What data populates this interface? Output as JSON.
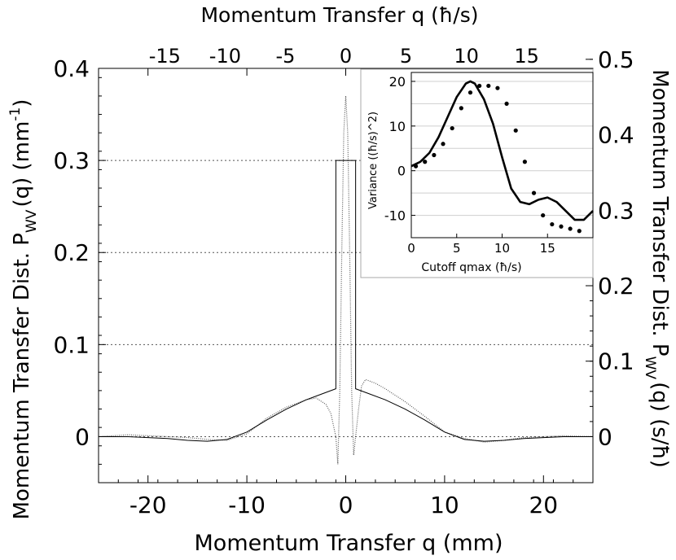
{
  "chart_data": [
    {
      "type": "scatter",
      "title": "",
      "xlabel": "Momentum Transfer q (mm)",
      "x2label": "Momentum Transfer q (ħ/s)",
      "ylabel": "Momentum Transfer Dist. P",
      "ylabel_sub": "WV",
      "ylabel_tail": "(q) (mm",
      "ylabel_sup": "-1",
      "ylabel_end": ")",
      "y2label": "Momentum Transfer Dist. P",
      "y2label_sub": "WV",
      "y2label_tail": "(q) (s/ħ)",
      "xlim": [
        -25,
        25
      ],
      "ylim": [
        -0.05,
        0.4
      ],
      "x_ticks": [
        -20,
        -10,
        0,
        10,
        20
      ],
      "y_ticks": [
        0,
        0.1,
        0.2,
        0.3,
        0.4
      ],
      "y_tick_labels": [
        "0",
        "0.1",
        "0.2",
        "0.3",
        "0.4"
      ],
      "x2_ticks": [
        -15,
        -10,
        -5,
        0,
        5,
        10,
        15
      ],
      "x2_scale_mm_per_unit": 1.22,
      "y2_ticks": [
        0,
        0.1,
        0.2,
        0.3,
        0.4,
        0.5
      ],
      "y2_tick_labels": [
        "0",
        "0.1",
        "0.2",
        "0.3",
        "0.4",
        "0.5"
      ],
      "y2_per_y": 1.22,
      "grid_y_dotted": [
        0,
        0.1,
        0.2,
        0.3
      ],
      "series": [
        {
          "style": "dots",
          "x": [
            -25,
            -22,
            -20,
            -18,
            -16,
            -14,
            -12,
            -10,
            -8,
            -6,
            -4,
            -3,
            -2,
            -1.5,
            -1.0,
            -0.8,
            -0.6,
            -0.4,
            -0.2,
            0,
            0.2,
            0.4,
            0.6,
            0.8,
            1.0,
            1.3,
            1.6,
            2,
            3,
            4,
            6,
            8,
            10,
            12,
            14,
            16,
            18,
            20,
            22,
            25
          ],
          "y": [
            0,
            0.002,
            0.001,
            0,
            -0.001,
            -0.003,
            -0.004,
            0.003,
            0.02,
            0.032,
            0.04,
            0.042,
            0.035,
            0.025,
            0.0,
            -0.03,
            0.05,
            0.2,
            0.33,
            0.37,
            0.33,
            0.2,
            0.05,
            -0.02,
            0.0,
            0.03,
            0.055,
            0.062,
            0.058,
            0.052,
            0.038,
            0.022,
            0.005,
            -0.002,
            -0.006,
            -0.004,
            -0.001,
            0,
            0.001,
            0
          ]
        },
        {
          "style": "line",
          "x": [
            -25,
            -22,
            -20,
            -18,
            -16,
            -14,
            -12,
            -10,
            -8,
            -6,
            -4,
            -2,
            -1,
            -1,
            1,
            1,
            2,
            4,
            6,
            8,
            10,
            12,
            14,
            16,
            18,
            20,
            22,
            25
          ],
          "y": [
            0,
            0,
            -0.001,
            -0.002,
            -0.004,
            -0.005,
            -0.003,
            0.005,
            0.018,
            0.03,
            0.04,
            0.048,
            0.052,
            0.3,
            0.3,
            0.052,
            0.048,
            0.04,
            0.03,
            0.018,
            0.005,
            -0.003,
            -0.005,
            -0.004,
            -0.002,
            -0.001,
            0,
            0
          ]
        }
      ]
    },
    {
      "type": "line",
      "title": "",
      "xlabel": "Cutoff qmax (ħ/s)",
      "ylabel": "Variance ((ħ/s)^2)",
      "xlim": [
        0,
        20
      ],
      "ylim": [
        -15,
        22
      ],
      "x_ticks": [
        0,
        5,
        10,
        15
      ],
      "y_ticks": [
        -10,
        0,
        10,
        20
      ],
      "grid_y": [
        -15,
        -10,
        -5,
        0,
        5,
        10,
        15,
        20
      ],
      "series": [
        {
          "style": "line",
          "x": [
            0,
            1,
            2,
            3,
            4,
            5,
            6,
            6.5,
            7,
            8,
            9,
            10,
            11,
            12,
            13,
            14,
            15,
            16,
            17,
            18,
            19,
            20
          ],
          "y": [
            1,
            2,
            4,
            7.5,
            12,
            16.5,
            19.5,
            20,
            19.5,
            16,
            10.5,
            3,
            -4,
            -7,
            -7.5,
            -6.5,
            -6,
            -7,
            -9,
            -11,
            -11,
            -9
          ]
        },
        {
          "style": "points",
          "x": [
            0.5,
            1.5,
            2.5,
            3.5,
            4.5,
            5.5,
            6.5,
            7.5,
            8.5,
            9.5,
            10.5,
            11.5,
            12.5,
            13.5,
            14.5,
            15.5,
            16.5,
            17.5,
            18.5
          ],
          "y": [
            1,
            2,
            3.5,
            6,
            9.5,
            14,
            17.5,
            19,
            19,
            18.5,
            15,
            9,
            2,
            -5,
            -10,
            -12,
            -12.5,
            -13,
            -13.5
          ]
        }
      ]
    }
  ]
}
